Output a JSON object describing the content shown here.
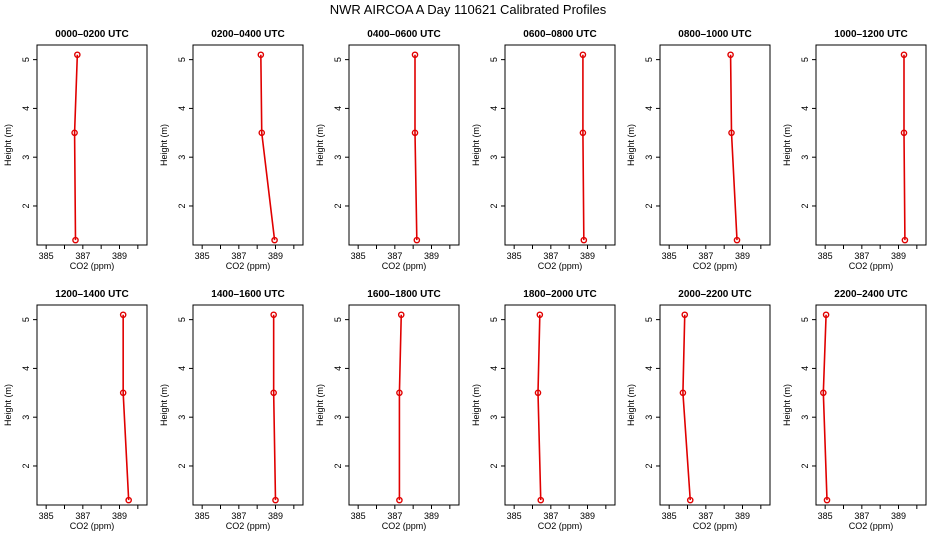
{
  "title": "NWR AIRCOA A  Day 110621  Calibrated Profiles",
  "chart_data": {
    "type": "line",
    "orientation": "profile (x = CO2, y = height)",
    "xlabel": "CO2 (ppm)",
    "ylabel": "Height (m)",
    "xlim": [
      384.5,
      390.5
    ],
    "ylim": [
      1.2,
      5.3
    ],
    "xticks": [
      385,
      386,
      387,
      388,
      389,
      390
    ],
    "xtick_labels": [
      "385",
      "387",
      "389"
    ],
    "yticks": [
      2,
      3,
      4,
      5
    ],
    "ytick_labels": [
      "2",
      "3",
      "4",
      "5"
    ],
    "heights": [
      1.3,
      3.5,
      5.1
    ],
    "color": "#e00000",
    "panels": [
      {
        "title": "0000–0200 UTC",
        "co2": [
          386.6,
          386.55,
          386.7
        ]
      },
      {
        "title": "0200–0400 UTC",
        "co2": [
          388.95,
          388.25,
          388.2
        ]
      },
      {
        "title": "0400–0600 UTC",
        "co2": [
          388.2,
          388.1,
          388.1
        ]
      },
      {
        "title": "0600–0800 UTC",
        "co2": [
          388.8,
          388.75,
          388.75
        ]
      },
      {
        "title": "0800–1000 UTC",
        "co2": [
          388.7,
          388.4,
          388.35
        ]
      },
      {
        "title": "1000–1200 UTC",
        "co2": [
          389.35,
          389.3,
          389.3
        ]
      },
      {
        "title": "1200–1400 UTC",
        "co2": [
          389.5,
          389.2,
          389.2
        ]
      },
      {
        "title": "1400–1600 UTC",
        "co2": [
          389.0,
          388.9,
          388.9
        ]
      },
      {
        "title": "1600–1800 UTC",
        "co2": [
          387.25,
          387.25,
          387.35
        ]
      },
      {
        "title": "1800–2000 UTC",
        "co2": [
          386.45,
          386.3,
          386.4
        ]
      },
      {
        "title": "2000–2200 UTC",
        "co2": [
          386.15,
          385.75,
          385.85
        ]
      },
      {
        "title": "2200–2400 UTC",
        "co2": [
          385.1,
          384.9,
          385.05
        ]
      }
    ]
  }
}
